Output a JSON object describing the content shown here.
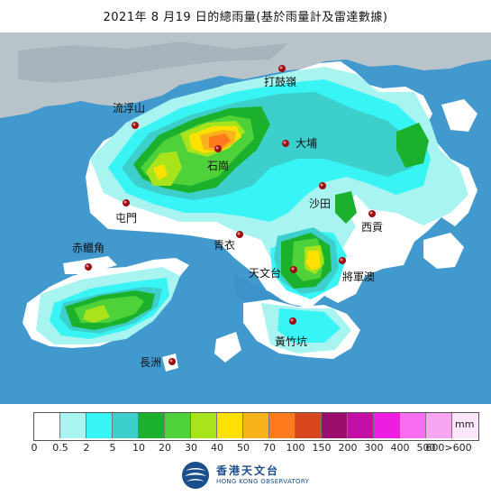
{
  "title": "2021年 8 月19 日的總雨量(基於雨量計及雷達數據)",
  "stations": [
    {
      "id": "tap-mun",
      "label": "打鼓嶺"
    },
    {
      "id": "lau-fau-shan",
      "label": "流浮山"
    },
    {
      "id": "tai-po",
      "label": "大埔"
    },
    {
      "id": "shek-kong",
      "label": "石崗"
    },
    {
      "id": "sha-tin",
      "label": "沙田"
    },
    {
      "id": "tuen-mun",
      "label": "屯門"
    },
    {
      "id": "sai-kung",
      "label": "西貢"
    },
    {
      "id": "tsing-yi",
      "label": "青衣"
    },
    {
      "id": "chek-lap-kok",
      "label": "赤鱲角"
    },
    {
      "id": "observatory",
      "label": "天文台"
    },
    {
      "id": "tseung-kwan-o",
      "label": "將軍澳"
    },
    {
      "id": "wong-chuk-hang",
      "label": "黃竹坑"
    },
    {
      "id": "cheung-chau",
      "label": "長洲"
    }
  ],
  "legend": {
    "unit": "mm",
    "colors": [
      "#ffffff",
      "#a8f4f0",
      "#38f4f4",
      "#3dcfcc",
      "#1cb12d",
      "#4fd13a",
      "#a8e31b",
      "#ffe100",
      "#f7b21c",
      "#ff7b1e",
      "#d8461e",
      "#9b0f6c",
      "#c20fa6",
      "#ee1ee1",
      "#f86ef2",
      "#f7a7f2",
      "#fbe6fb"
    ],
    "ticks": [
      "0",
      "0.5",
      "2",
      "5",
      "10",
      "20",
      "30",
      "40",
      "50",
      "70",
      "100",
      "150",
      "200",
      "300",
      "400",
      "500",
      "600>600"
    ]
  },
  "logo": {
    "cn": "香港天文台",
    "en": "HONG KONG OBSERVATORY"
  }
}
